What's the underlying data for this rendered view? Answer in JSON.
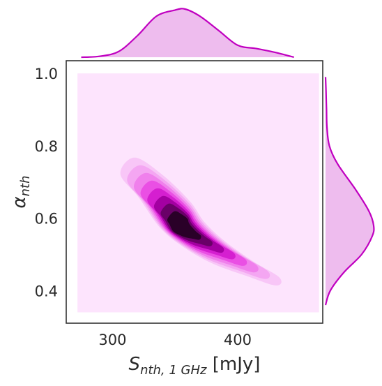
{
  "chart_data": {
    "type": "kde_jointplot",
    "xlabel": "S_{nth, 1 GHz} [mJy]",
    "xlabel_parts": {
      "symbol": "S",
      "subscript": "nth, 1 GHz",
      "unit": " [mJy]"
    },
    "ylabel": "α_{nth}",
    "ylabel_parts": {
      "symbol": "α",
      "subscript": "nth"
    },
    "xlim": [
      263,
      468
    ],
    "ylim": [
      0.31,
      1.035
    ],
    "x_ticks": [
      300,
      400
    ],
    "y_ticks": [
      0.4,
      0.6,
      0.8,
      1.0
    ],
    "x_tick_labels": [
      "300",
      "400"
    ],
    "y_tick_labels": [
      "0.4",
      "0.6",
      "0.8",
      "1.0"
    ],
    "grid": false,
    "background_region": {
      "x": [
        272,
        465
      ],
      "y": [
        0.34,
        1.0
      ]
    },
    "joint_kde": {
      "levels": 8,
      "spine": [
        [
          312,
          0.745
        ],
        [
          330,
          0.69
        ],
        [
          350,
          0.61
        ],
        [
          365,
          0.555
        ],
        [
          385,
          0.505
        ],
        [
          410,
          0.46
        ],
        [
          432,
          0.425
        ]
      ],
      "outer_halfwidth": [
        0.03,
        0.045,
        0.055,
        0.045,
        0.035,
        0.022,
        0.012
      ]
    },
    "marginal_x": {
      "x": [
        275,
        290,
        305,
        320,
        335,
        350,
        358,
        370,
        385,
        400,
        415,
        430,
        445
      ],
      "density": [
        0.0,
        0.02,
        0.12,
        0.45,
        0.85,
        0.98,
        1.0,
        0.85,
        0.55,
        0.25,
        0.18,
        0.1,
        0.0
      ]
    },
    "marginal_y": {
      "y": [
        0.36,
        0.4,
        0.45,
        0.5,
        0.55,
        0.58,
        0.62,
        0.68,
        0.75,
        0.8,
        0.85,
        0.9,
        0.95,
        0.99
      ],
      "density": [
        0.0,
        0.1,
        0.38,
        0.75,
        0.97,
        1.0,
        0.9,
        0.62,
        0.25,
        0.08,
        0.03,
        0.02,
        0.01,
        0.0
      ]
    },
    "colors": {
      "line": "#c000c0",
      "marginal_fill": "#eebcee",
      "background": "#fde4fd",
      "contours": [
        "#fde4fd",
        "#f8c6f7",
        "#f4a6f2",
        "#f080ec",
        "#ea4fe4",
        "#d51fd0",
        "#a400a2",
        "#6a0068",
        "#2a0028"
      ]
    }
  }
}
